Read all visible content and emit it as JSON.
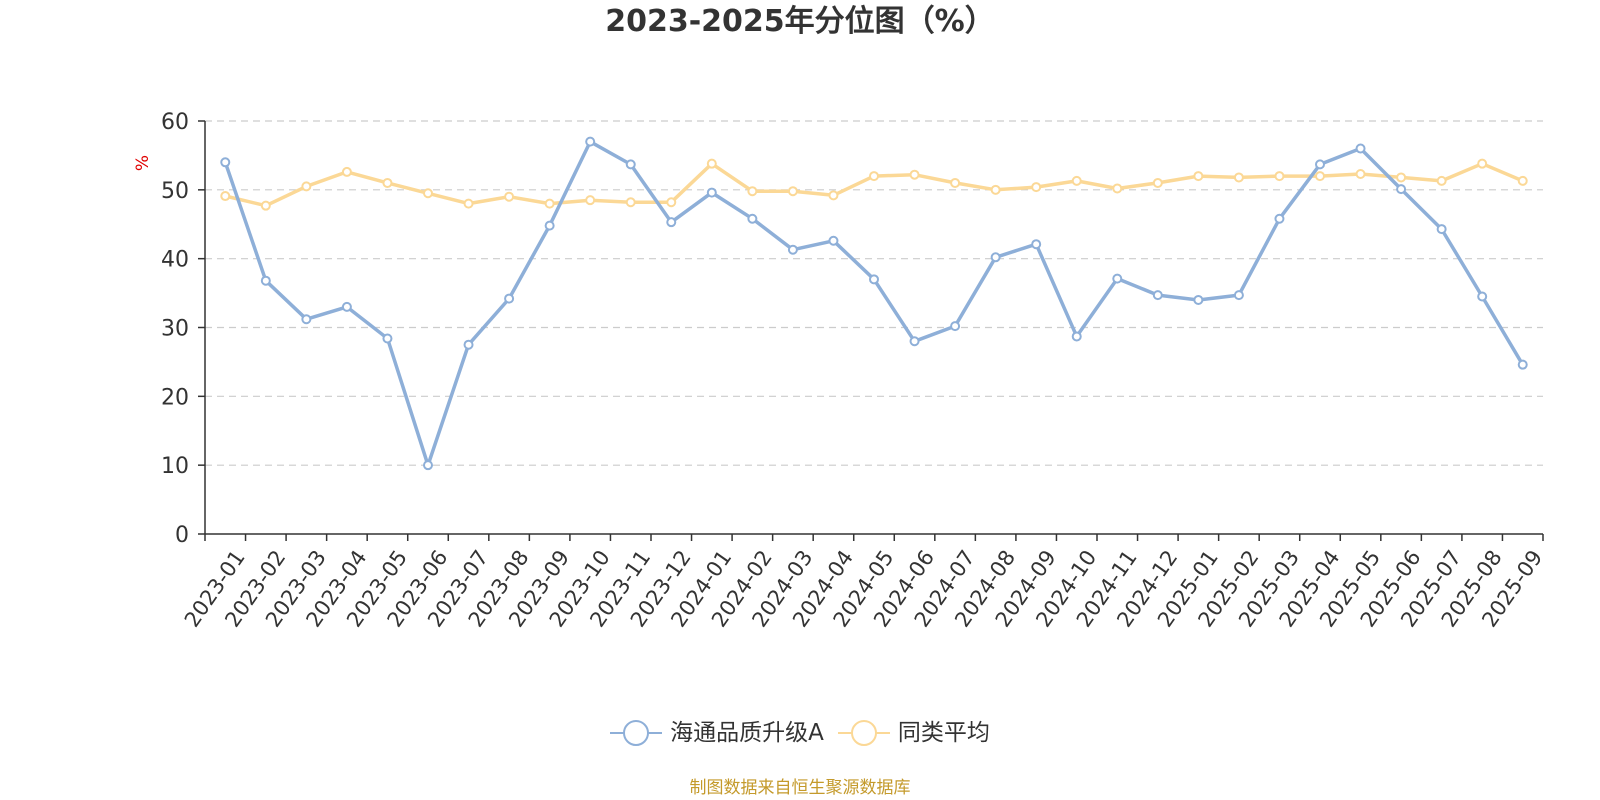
{
  "chart_data": {
    "type": "line",
    "title": "2023-2025年分位图（%）",
    "ylabel": "%",
    "xlabel": "",
    "ylim": [
      0,
      60
    ],
    "yticks": [
      0,
      10,
      20,
      30,
      40,
      50,
      60
    ],
    "grid": true,
    "legend_position": "bottom",
    "categories": [
      "2023-01",
      "2023-02",
      "2023-03",
      "2023-04",
      "2023-05",
      "2023-06",
      "2023-07",
      "2023-08",
      "2023-09",
      "2023-10",
      "2023-11",
      "2023-12",
      "2024-01",
      "2024-02",
      "2024-03",
      "2024-04",
      "2024-05",
      "2024-06",
      "2024-07",
      "2024-08",
      "2024-09",
      "2024-10",
      "2024-11",
      "2024-12",
      "2025-01",
      "2025-02",
      "2025-03",
      "2025-04",
      "2025-05",
      "2025-06",
      "2025-07",
      "2025-08",
      "2025-09"
    ],
    "series": [
      {
        "name": "海通品质升级A",
        "color": "#8eafd8",
        "values": [
          54.0,
          36.8,
          31.2,
          33.0,
          28.4,
          10.0,
          27.5,
          34.2,
          44.8,
          57.0,
          53.7,
          45.3,
          49.6,
          45.8,
          41.3,
          42.6,
          37.0,
          28.0,
          30.2,
          40.2,
          42.1,
          28.7,
          37.1,
          34.7,
          34.0,
          34.7,
          45.8,
          53.7,
          56.0,
          50.1,
          44.3,
          34.5,
          24.6
        ]
      },
      {
        "name": "同类平均",
        "color": "#fbd896",
        "values": [
          49.1,
          47.7,
          50.5,
          52.6,
          51.0,
          49.5,
          48.0,
          49.0,
          48.0,
          48.5,
          48.2,
          48.2,
          53.8,
          49.8,
          49.8,
          49.2,
          52.0,
          52.2,
          51.0,
          50.0,
          50.4,
          51.3,
          50.2,
          51.0,
          52.0,
          51.8,
          52.0,
          52.0,
          52.3,
          51.8,
          51.3,
          53.8,
          51.3
        ]
      }
    ]
  },
  "footer": {
    "source_text": "制图数据来自恒生聚源数据库"
  },
  "colors": {
    "axis": "#333333",
    "grid": "#cccccc",
    "ylabel": "#e00000",
    "source": "#c49a2b"
  }
}
